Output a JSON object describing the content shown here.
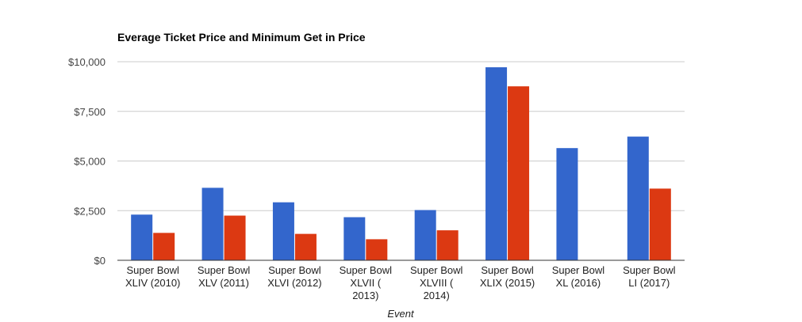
{
  "chart_data": {
    "type": "bar",
    "title": "Everage Ticket Price and Minimum Get in Price",
    "xlabel": "Event",
    "ylabel": "",
    "ylim": [
      0,
      10000
    ],
    "yticks": [
      "$0",
      "$2,500",
      "$5,000",
      "$7,500",
      "$10,000"
    ],
    "ytick_values": [
      0,
      2500,
      5000,
      7500,
      10000
    ],
    "categories": [
      [
        "Super Bowl",
        "XLIV (2010)"
      ],
      [
        "Super Bowl",
        "XLV (2011)"
      ],
      [
        "Super Bowl",
        "XLVI (2012)"
      ],
      [
        "Super Bowl",
        "XLVII (",
        "2013)"
      ],
      [
        "Super Bowl",
        "XLVIII (",
        "2014)"
      ],
      [
        "Super Bowl",
        "XLIX (2015)"
      ],
      [
        "Super Bowl",
        "XL (2016)"
      ],
      [
        "Super Bowl",
        "LI (2017)"
      ]
    ],
    "series": [
      {
        "color": "#3366cc",
        "values": [
          2300,
          3650,
          2920,
          2170,
          2530,
          9720,
          5650,
          6230
        ]
      },
      {
        "color": "#dc3912",
        "values": [
          1380,
          2250,
          1330,
          1060,
          1510,
          8760,
          null,
          3610
        ]
      }
    ],
    "grid": true,
    "legend": "none"
  }
}
